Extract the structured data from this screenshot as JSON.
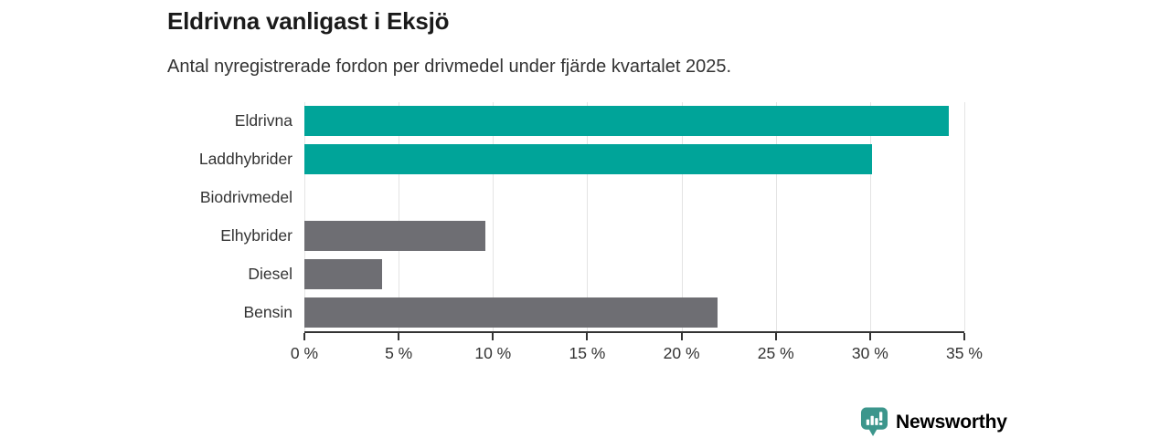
{
  "header": {
    "title": "Eldrivna vanligast i Eksjö",
    "subtitle": "Antal nyregistrerade fordon per drivmedel under fjärde kvartalet 2025."
  },
  "colors": {
    "bar_highlight": "#00a499",
    "bar_default": "#6e6e73",
    "gridline": "#e4e4e4",
    "axis": "#333333",
    "title_text": "#1a1a1a",
    "body_text": "#333333",
    "brand_teal": "#3c968c"
  },
  "chart_data": {
    "type": "bar",
    "orientation": "horizontal",
    "title": "Eldrivna vanligast i Eksjö",
    "subtitle": "Antal nyregistrerade fordon per drivmedel under fjärde kvartalet 2025.",
    "categories": [
      "Eldrivna",
      "Laddhybrider",
      "Biodrivmedel",
      "Elhybrider",
      "Diesel",
      "Bensin"
    ],
    "values": [
      34.2,
      30.1,
      0,
      9.6,
      4.1,
      21.9
    ],
    "highlighted": [
      true,
      true,
      false,
      false,
      false,
      false
    ],
    "unit": "%",
    "xlabel": "",
    "ylabel": "",
    "xlim": [
      0,
      35
    ],
    "xticks": [
      0,
      5,
      10,
      15,
      20,
      25,
      30,
      35
    ],
    "xtick_labels": [
      "0 %",
      "5 %",
      "10 %",
      "15 %",
      "20 %",
      "25 %",
      "30 %",
      "35 %"
    ],
    "grid": true,
    "legend": "none"
  },
  "footer": {
    "brand": "Newsworthy",
    "logo_icon": "bar-chart-speech-bubble"
  }
}
